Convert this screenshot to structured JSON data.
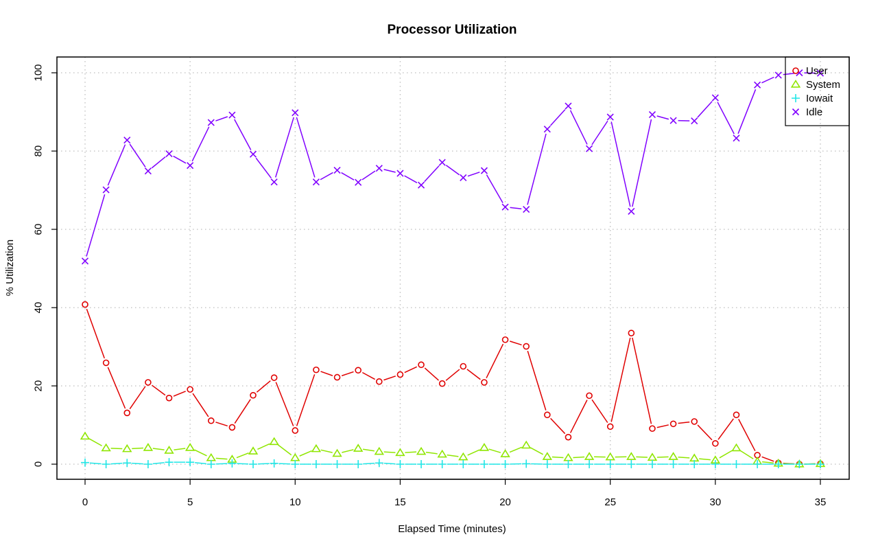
{
  "chart_data": {
    "type": "line",
    "title": "Processor Utilization",
    "xlabel": "Elapsed Time (minutes)",
    "ylabel": "% Utilization",
    "xlim": [
      0,
      35
    ],
    "ylim": [
      0,
      100
    ],
    "xticks": [
      0,
      5,
      10,
      15,
      20,
      25,
      30,
      35
    ],
    "yticks": [
      0,
      20,
      40,
      60,
      80,
      100
    ],
    "grid": true,
    "legend_position": "top-right",
    "x": [
      0,
      1,
      2,
      3,
      4,
      5,
      6,
      7,
      8,
      9,
      10,
      11,
      12,
      13,
      14,
      15,
      16,
      17,
      18,
      19,
      20,
      21,
      22,
      23,
      24,
      25,
      26,
      27,
      28,
      29,
      30,
      31,
      32,
      33,
      34,
      35
    ],
    "series": [
      {
        "name": "User",
        "color": "#e00000",
        "marker": "circle",
        "values": [
          40.8,
          25.9,
          13.1,
          20.9,
          16.9,
          19.1,
          11.1,
          9.4,
          17.6,
          22.1,
          8.6,
          24.1,
          22.2,
          24.0,
          21.1,
          22.9,
          25.4,
          20.6,
          25.0,
          20.9,
          31.8,
          30.1,
          12.6,
          6.9,
          17.5,
          9.6,
          33.5,
          9.1,
          10.3,
          10.9,
          5.3,
          12.6,
          2.3,
          0.3,
          0.0,
          0.1
        ]
      },
      {
        "name": "System",
        "color": "#8fe600",
        "marker": "triangle",
        "values": [
          7.1,
          4.1,
          3.9,
          4.2,
          3.5,
          4.2,
          1.6,
          1.2,
          3.3,
          5.7,
          1.6,
          3.9,
          2.7,
          4.0,
          3.2,
          2.9,
          3.2,
          2.5,
          1.8,
          4.2,
          2.6,
          4.8,
          1.9,
          1.6,
          1.9,
          1.8,
          1.9,
          1.7,
          1.9,
          1.5,
          1.0,
          4.1,
          0.7,
          0.2,
          0.0,
          0.1
        ]
      },
      {
        "name": "Iowait",
        "color": "#1fe6e6",
        "marker": "plus",
        "values": [
          0.4,
          0.0,
          0.3,
          0.0,
          0.5,
          0.5,
          0.0,
          0.2,
          0.0,
          0.2,
          0.0,
          0.0,
          0.0,
          0.0,
          0.3,
          0.0,
          0.0,
          0.0,
          0.0,
          0.0,
          0.0,
          0.1,
          0.0,
          0.0,
          0.0,
          0.0,
          0.0,
          0.0,
          0.0,
          0.0,
          0.0,
          0.0,
          0.0,
          0.0,
          0.0,
          0.0
        ]
      },
      {
        "name": "Idle",
        "color": "#8000ff",
        "marker": "x",
        "values": [
          51.9,
          70.1,
          82.8,
          74.9,
          79.3,
          76.3,
          87.3,
          89.2,
          79.2,
          72.1,
          89.8,
          72.1,
          75.1,
          72.0,
          75.6,
          74.3,
          71.3,
          77.1,
          73.2,
          75.0,
          65.7,
          65.1,
          85.6,
          91.5,
          80.6,
          88.7,
          64.6,
          89.3,
          87.8,
          87.7,
          93.6,
          83.3,
          96.9,
          99.4,
          100.0,
          99.9
        ]
      }
    ]
  }
}
